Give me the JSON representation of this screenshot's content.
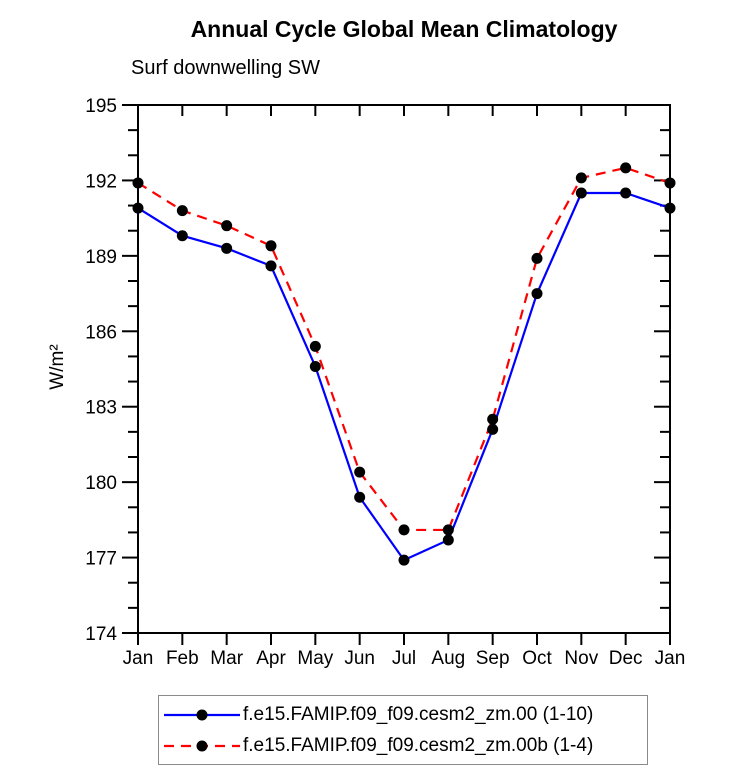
{
  "title": "Annual Cycle Global Mean Climatology",
  "subtitle": "Surf downwelling SW",
  "chart_data": {
    "type": "line",
    "title": "Annual Cycle Global Mean Climatology",
    "subtitle": "Surf downwelling SW",
    "xlabel": "",
    "ylabel": "W/m²",
    "categories": [
      "Jan",
      "Feb",
      "Mar",
      "Apr",
      "May",
      "Jun",
      "Jul",
      "Aug",
      "Sep",
      "Oct",
      "Nov",
      "Dec",
      "Jan"
    ],
    "ylim": [
      174,
      195
    ],
    "yticks": [
      174,
      177,
      180,
      183,
      186,
      189,
      192,
      195
    ],
    "minor_tick_step": 1,
    "grid": false,
    "legend_position": "bottom",
    "axis_color": "#000000",
    "marker_color": "#000000",
    "series": [
      {
        "name": "f.e15.FAMIP.f09_f09.cesm2_zm.00 (1-10)",
        "color": "#0000ff",
        "style": "solid",
        "marker": "circle",
        "values": [
          190.9,
          189.8,
          189.3,
          188.6,
          184.6,
          179.4,
          176.9,
          177.7,
          182.1,
          187.5,
          191.5,
          191.5,
          190.9
        ]
      },
      {
        "name": "f.e15.FAMIP.f09_f09.cesm2_zm.00b (1-4)",
        "color": "#ff0000",
        "style": "dashed",
        "marker": "circle",
        "values": [
          191.9,
          190.8,
          190.2,
          189.4,
          185.4,
          180.4,
          178.1,
          178.1,
          182.5,
          188.9,
          192.1,
          192.5,
          191.9
        ]
      }
    ]
  }
}
